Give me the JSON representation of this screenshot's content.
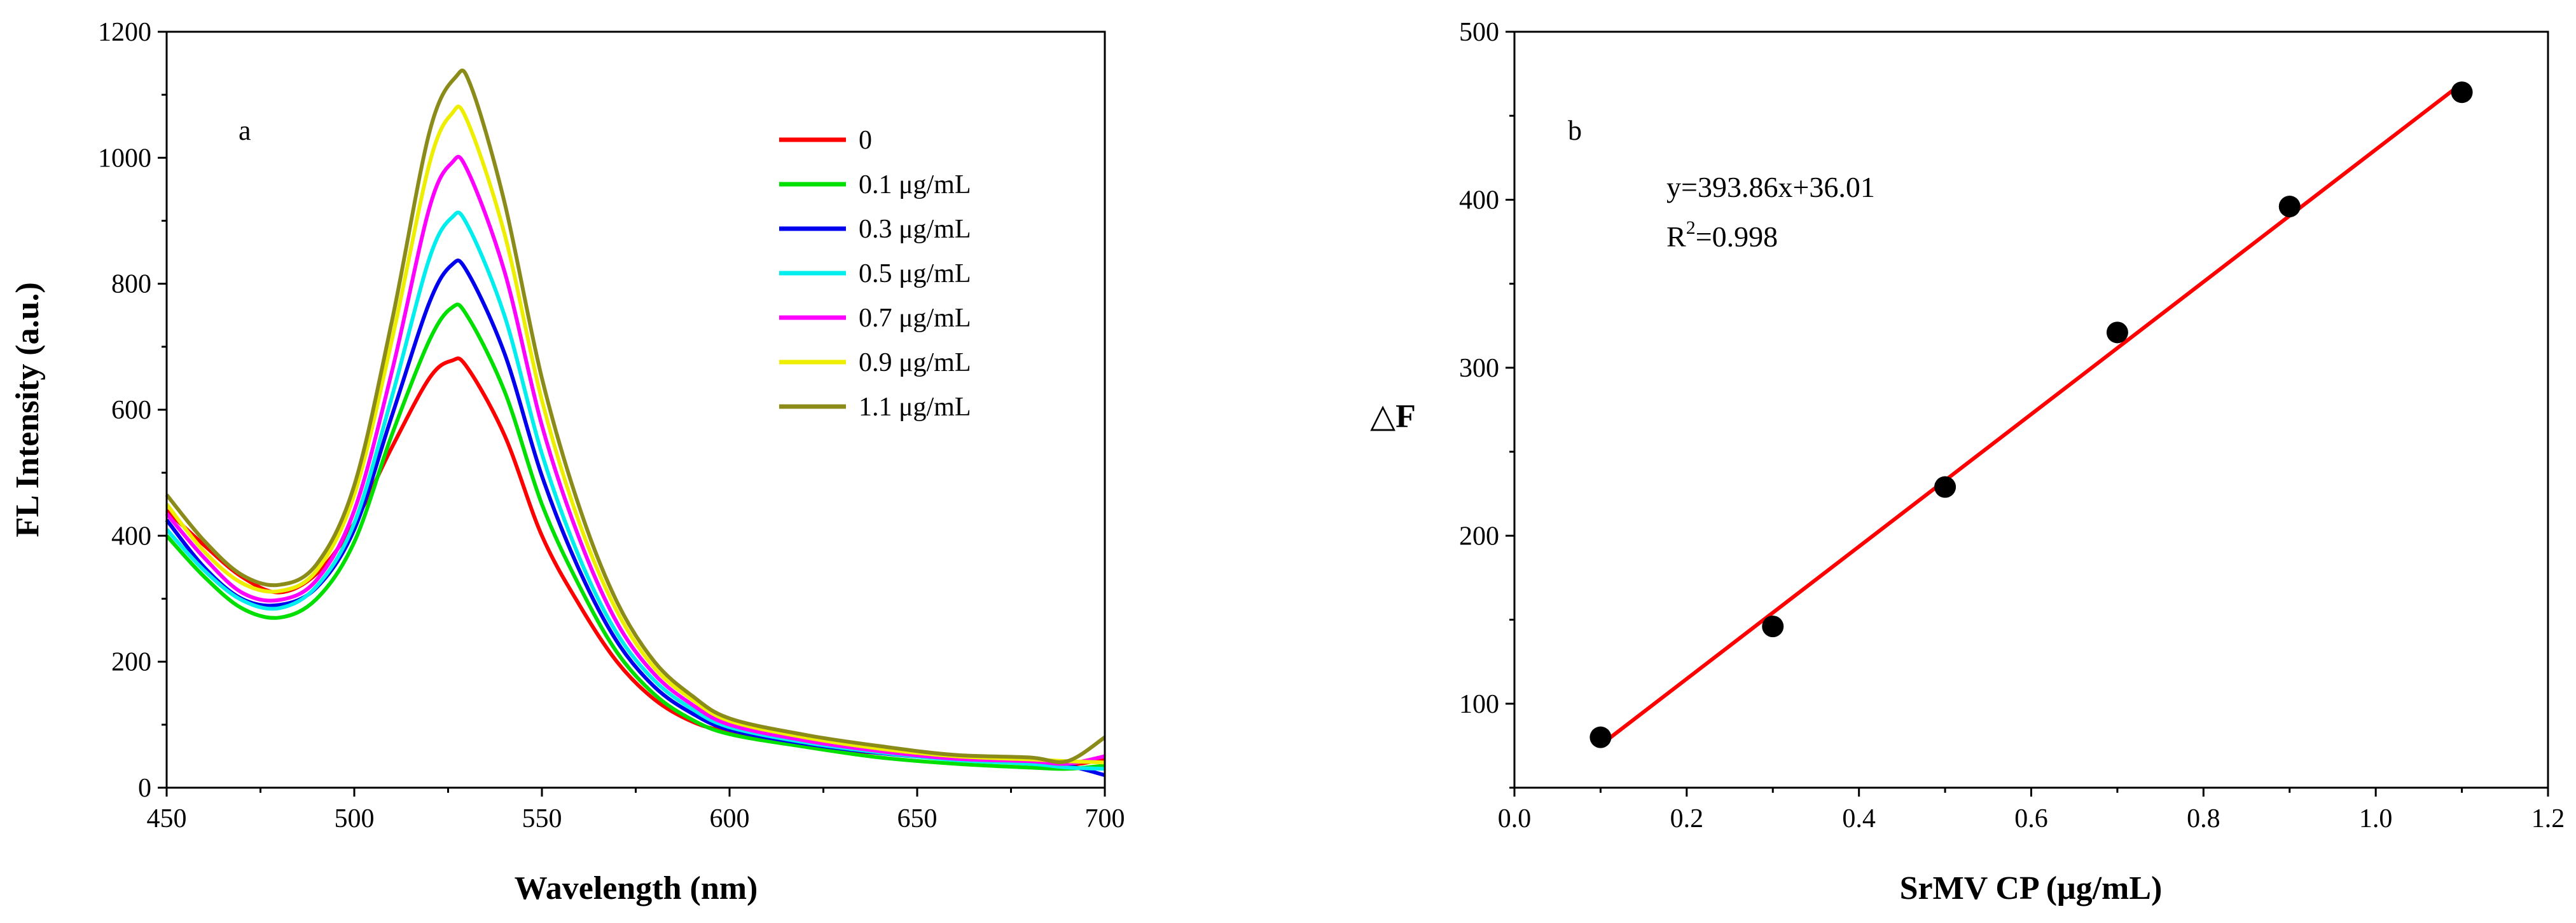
{
  "chart_data": [
    {
      "type": "line",
      "panel_label": "a",
      "title": "",
      "xlabel": "Wavelength (nm)",
      "ylabel": "FL Intensity (a.u.)",
      "xlim": [
        450,
        700
      ],
      "ylim": [
        0,
        1200
      ],
      "xticks": [
        "450",
        "500",
        "550",
        "600",
        "650",
        "700"
      ],
      "yticks": [
        "0",
        "200",
        "400",
        "600",
        "800",
        "1000",
        "1200"
      ],
      "legend_position": "top-right",
      "series": [
        {
          "name": "0",
          "color": "#ff0000",
          "peak": 678,
          "low": 310,
          "tail": 45,
          "points": [
            [
              450,
              440
            ],
            [
              460,
              385
            ],
            [
              470,
              335
            ],
            [
              480,
              310
            ],
            [
              490,
              340
            ],
            [
              500,
              420
            ],
            [
              510,
              540
            ],
            [
              520,
              650
            ],
            [
              526,
              678
            ],
            [
              530,
              668
            ],
            [
              540,
              560
            ],
            [
              550,
              400
            ],
            [
              560,
              290
            ],
            [
              570,
              200
            ],
            [
              580,
              140
            ],
            [
              590,
              105
            ],
            [
              600,
              88
            ],
            [
              620,
              66
            ],
            [
              640,
              55
            ],
            [
              660,
              45
            ],
            [
              680,
              40
            ],
            [
              690,
              36
            ],
            [
              700,
              45
            ]
          ]
        },
        {
          "name": "0.1 μg/mL",
          "color": "#00e000",
          "peak": 762,
          "low": 270,
          "tail": 35,
          "points": [
            [
              450,
              400
            ],
            [
              460,
              335
            ],
            [
              470,
              285
            ],
            [
              480,
              270
            ],
            [
              490,
              300
            ],
            [
              500,
              390
            ],
            [
              510,
              560
            ],
            [
              520,
              710
            ],
            [
              526,
              762
            ],
            [
              530,
              750
            ],
            [
              540,
              630
            ],
            [
              550,
              450
            ],
            [
              560,
              320
            ],
            [
              570,
              215
            ],
            [
              580,
              148
            ],
            [
              590,
              108
            ],
            [
              600,
              85
            ],
            [
              620,
              65
            ],
            [
              640,
              48
            ],
            [
              660,
              38
            ],
            [
              680,
              32
            ],
            [
              690,
              30
            ],
            [
              700,
              35
            ]
          ]
        },
        {
          "name": "0.3 μg/mL",
          "color": "#0000ee",
          "peak": 833,
          "low": 288,
          "tail": 20,
          "points": [
            [
              450,
              425
            ],
            [
              460,
              350
            ],
            [
              470,
              300
            ],
            [
              480,
              290
            ],
            [
              490,
              318
            ],
            [
              500,
              410
            ],
            [
              510,
              590
            ],
            [
              520,
              770
            ],
            [
              526,
              830
            ],
            [
              530,
              820
            ],
            [
              540,
              690
            ],
            [
              550,
              495
            ],
            [
              560,
              345
            ],
            [
              570,
              232
            ],
            [
              580,
              160
            ],
            [
              590,
              118
            ],
            [
              600,
              92
            ],
            [
              620,
              70
            ],
            [
              640,
              55
            ],
            [
              660,
              45
            ],
            [
              680,
              40
            ],
            [
              690,
              35
            ],
            [
              700,
              20
            ]
          ]
        },
        {
          "name": "0.5 μg/mL",
          "color": "#00eeee",
          "peak": 910,
          "low": 285,
          "tail": 30,
          "points": [
            [
              450,
              410
            ],
            [
              460,
              345
            ],
            [
              470,
              298
            ],
            [
              480,
              285
            ],
            [
              490,
              320
            ],
            [
              500,
              420
            ],
            [
              510,
              620
            ],
            [
              520,
              840
            ],
            [
              526,
              905
            ],
            [
              530,
              895
            ],
            [
              540,
              750
            ],
            [
              550,
              530
            ],
            [
              560,
              365
            ],
            [
              570,
              245
            ],
            [
              580,
              170
            ],
            [
              590,
              125
            ],
            [
              600,
              96
            ],
            [
              620,
              72
            ],
            [
              640,
              56
            ],
            [
              660,
              44
            ],
            [
              680,
              38
            ],
            [
              690,
              32
            ],
            [
              700,
              30
            ]
          ]
        },
        {
          "name": "0.7 μg/mL",
          "color": "#ff00ff",
          "peak": 997,
          "low": 295,
          "tail": 50,
          "points": [
            [
              450,
              435
            ],
            [
              460,
              365
            ],
            [
              470,
              310
            ],
            [
              480,
              298
            ],
            [
              490,
              330
            ],
            [
              500,
              440
            ],
            [
              510,
              660
            ],
            [
              520,
              920
            ],
            [
              526,
              992
            ],
            [
              530,
              982
            ],
            [
              540,
              820
            ],
            [
              550,
              575
            ],
            [
              560,
              395
            ],
            [
              570,
              262
            ],
            [
              580,
              180
            ],
            [
              590,
              132
            ],
            [
              600,
              100
            ],
            [
              620,
              75
            ],
            [
              640,
              58
            ],
            [
              660,
              46
            ],
            [
              680,
              42
            ],
            [
              690,
              38
            ],
            [
              700,
              50
            ]
          ]
        },
        {
          "name": "0.9 μg/mL",
          "color": "#eeee00",
          "peak": 1075,
          "low": 310,
          "tail": 40,
          "points": [
            [
              450,
              450
            ],
            [
              460,
              375
            ],
            [
              470,
              325
            ],
            [
              480,
              312
            ],
            [
              490,
              345
            ],
            [
              500,
              465
            ],
            [
              510,
              710
            ],
            [
              520,
              990
            ],
            [
              526,
              1070
            ],
            [
              530,
              1060
            ],
            [
              540,
              880
            ],
            [
              550,
              615
            ],
            [
              560,
              420
            ],
            [
              570,
              280
            ],
            [
              580,
              190
            ],
            [
              590,
              140
            ],
            [
              600,
              106
            ],
            [
              620,
              80
            ],
            [
              640,
              62
            ],
            [
              660,
              50
            ],
            [
              680,
              45
            ],
            [
              690,
              42
            ],
            [
              700,
              40
            ]
          ]
        },
        {
          "name": "1.1 μg/mL",
          "color": "#8b8b1a",
          "peak": 1130,
          "low": 322,
          "tail": 80,
          "points": [
            [
              450,
              465
            ],
            [
              460,
              392
            ],
            [
              470,
              338
            ],
            [
              480,
              322
            ],
            [
              490,
              355
            ],
            [
              500,
              480
            ],
            [
              510,
              740
            ],
            [
              520,
              1040
            ],
            [
              527,
              1128
            ],
            [
              531,
              1115
            ],
            [
              540,
              930
            ],
            [
              550,
              650
            ],
            [
              560,
              445
            ],
            [
              570,
              295
            ],
            [
              580,
              200
            ],
            [
              590,
              146
            ],
            [
              600,
              110
            ],
            [
              620,
              84
            ],
            [
              640,
              66
            ],
            [
              660,
              52
            ],
            [
              680,
              48
            ],
            [
              690,
              42
            ],
            [
              700,
              80
            ]
          ]
        }
      ]
    },
    {
      "type": "scatter",
      "panel_label": "b",
      "title": "",
      "xlabel": "SrMV CP (μg/mL)",
      "ylabel": "△F",
      "xlim": [
        0.0,
        1.2
      ],
      "ylim": [
        50,
        500
      ],
      "xticks": [
        "0.0",
        "0.2",
        "0.4",
        "0.6",
        "0.8",
        "1.0",
        "1.2"
      ],
      "yticks": [
        "100",
        "200",
        "300",
        "400",
        "500"
      ],
      "x": [
        0.1,
        0.3,
        0.5,
        0.7,
        0.9,
        1.1
      ],
      "y": [
        80,
        146,
        229,
        321,
        396,
        464
      ],
      "fit": {
        "slope": 393.86,
        "intercept": 36.01,
        "color": "#ff0000"
      },
      "equation": "y=393.86x+36.01",
      "r2_prefix": "R",
      "r2_sup": "2",
      "r2_value": "=0.998",
      "marker_color": "#000000"
    }
  ]
}
